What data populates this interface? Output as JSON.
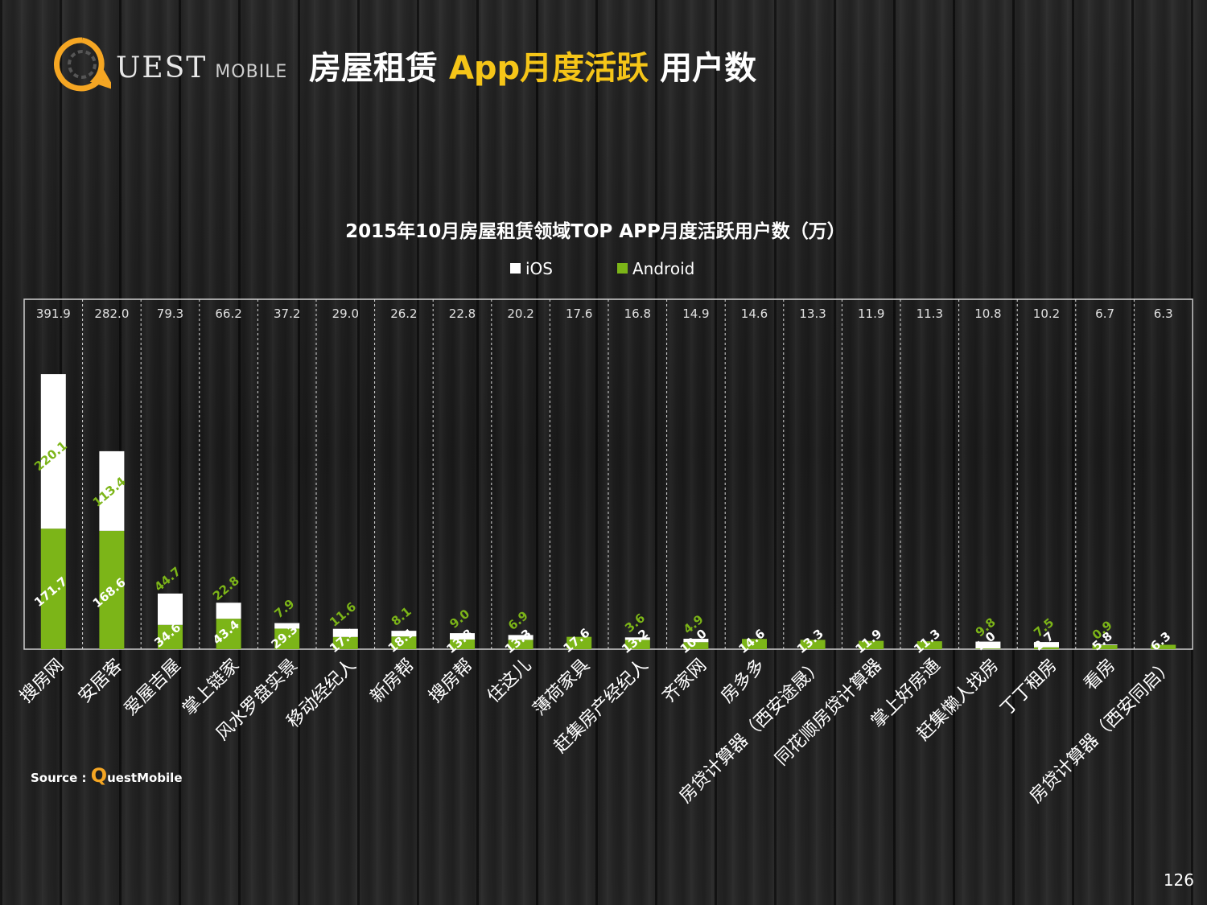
{
  "brand": {
    "logo_text": "UEST",
    "logo_sub": "MOBILE",
    "accent_color": "#f5a623"
  },
  "header": {
    "title_part1": "房屋租赁",
    "title_part2": "App月度活跃",
    "title_part3": "用户数"
  },
  "chart_data": {
    "type": "bar",
    "stacked": true,
    "title": "2015年10月房屋租赁领域TOP APP月度活跃用户数（万）",
    "legend_position": "top-center",
    "grid": true,
    "ylim": [
      0,
      600
    ],
    "categories": [
      "搜房网",
      "安居客",
      "爱屋吉屋",
      "掌上链家",
      "风水罗盘实景",
      "移动经纪人",
      "新房帮",
      "搜房帮",
      "住这儿",
      "薄荷家具",
      "赶集房产经纪人",
      "齐家网",
      "房多多",
      "房贷计算器（西安途晟）",
      "同花顺房贷计算器",
      "掌上好房通",
      "赶集懒人找房",
      "丁丁租房",
      "看房",
      "房贷计算器（西安同启）"
    ],
    "totals": [
      "391.9",
      "282.0",
      "79.3",
      "66.2",
      "37.2",
      "29.0",
      "26.2",
      "22.8",
      "20.2",
      "17.6",
      "16.8",
      "14.9",
      "14.6",
      "13.3",
      "11.9",
      "11.3",
      "10.8",
      "10.2",
      "6.7",
      "6.3"
    ],
    "series": [
      {
        "name": "Android",
        "color": "#7cb518",
        "values": [
          171.7,
          168.6,
          34.6,
          43.4,
          29.3,
          17.4,
          18.1,
          13.8,
          13.3,
          17.6,
          13.2,
          10.0,
          14.6,
          13.3,
          11.9,
          11.3,
          1.0,
          2.7,
          5.8,
          6.3
        ],
        "labels": [
          "171.7",
          "168.6",
          "34.6",
          "43.4",
          "29.3",
          "17.4",
          "18.1",
          "13.8",
          "13.3",
          "17.6",
          "13.2",
          "10.0",
          "14.6",
          "13.3",
          "11.9",
          "11.3",
          "1.0",
          "2.7",
          "5.8",
          "6.3"
        ]
      },
      {
        "name": "iOS",
        "color": "#ffffff",
        "values": [
          220.1,
          113.4,
          44.7,
          22.8,
          7.9,
          11.6,
          8.1,
          9.0,
          6.9,
          0,
          3.6,
          4.9,
          0,
          0,
          0,
          0,
          9.8,
          7.5,
          0.9,
          0
        ],
        "labels": [
          "220.1",
          "113.4",
          "44.7",
          "22.8",
          "7.9",
          "11.6",
          "8.1",
          "9.0",
          "6.9",
          "",
          "3.6",
          "4.9",
          "",
          "",
          "",
          "",
          "9.8",
          "7.5",
          "0.9",
          ""
        ]
      }
    ]
  },
  "footer": {
    "source_label": "Source :",
    "source_q": "Q",
    "source_rest": "uestMobile",
    "page_number": "126"
  }
}
